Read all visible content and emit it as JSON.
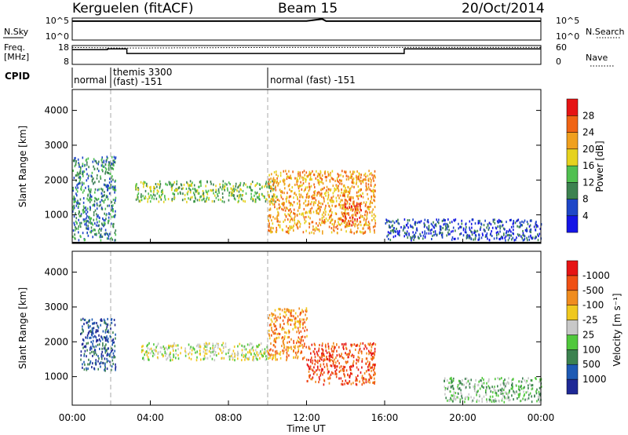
{
  "header": {
    "station": "Kerguelen (fitACF)",
    "beam": "Beam 15",
    "date": "20/Oct/2014"
  },
  "sky_panel": {
    "left_label": "N.Sky",
    "right_label": "N.Search",
    "left_ticks": [
      "10^5",
      "10^0"
    ],
    "right_ticks": [
      "10^5",
      "10^0"
    ]
  },
  "freq_panel": {
    "left_label_line1": "Freq.",
    "left_label_line2": "[MHz]",
    "right_label": "Nave",
    "left_ticks": [
      "18",
      "8"
    ],
    "right_ticks": [
      "60",
      "0"
    ]
  },
  "cpid": {
    "label": "CPID",
    "segments": [
      {
        "line1": "normal",
        "line2": ""
      },
      {
        "line1": "themis 3300",
        "line2": "(fast) -151"
      },
      {
        "line1": "normal (fast) -151",
        "line2": ""
      }
    ]
  },
  "time_axis": {
    "label": "Time UT",
    "ticks": [
      "00:00",
      "04:00",
      "08:00",
      "12:00",
      "16:00",
      "20:00",
      "00:00"
    ]
  },
  "colors": {
    "power": [
      "#1414e6",
      "#1e46c8",
      "#3c8250",
      "#50c050",
      "#e6d21e",
      "#f0a01e",
      "#f06414",
      "#e61414"
    ],
    "velocity": [
      "#e61414",
      "#f05014",
      "#f08c1e",
      "#f0c81e",
      "#c8c8c8",
      "#50c83c",
      "#3c8250",
      "#1e5ab4",
      "#1e2896"
    ],
    "frame": "#000000"
  },
  "chart_data": [
    {
      "type": "line",
      "title": "",
      "ylabel": "N.Sky",
      "y_scale": "log",
      "ylim": [
        1,
        100000
      ],
      "x_unit": "hours UT",
      "xlim": [
        0,
        24
      ],
      "series": [
        {
          "name": "N.Sky",
          "points": [
            [
              0,
              20000
            ],
            [
              6,
              20000
            ],
            [
              12,
              22000
            ],
            [
              12.8,
              60000
            ],
            [
              13,
              20000
            ],
            [
              18,
              20000
            ],
            [
              24,
              20000
            ]
          ]
        }
      ]
    },
    {
      "type": "line",
      "ylabel": "Freq. [MHz]",
      "ylim": [
        8,
        18
      ],
      "y2label": "Nave",
      "y2lim": [
        0,
        60
      ],
      "xlim": [
        0,
        24
      ],
      "series": [
        {
          "name": "Freq.",
          "points": [
            [
              0,
              15.8
            ],
            [
              1.8,
              15.8
            ],
            [
              1.8,
              16.2
            ],
            [
              2.8,
              16.2
            ],
            [
              2.8,
              13.8
            ],
            [
              17,
              13.8
            ],
            [
              17,
              16.2
            ],
            [
              24,
              16.2
            ]
          ]
        },
        {
          "name": "Nave",
          "style": "dotted",
          "points": [
            [
              0,
              54
            ],
            [
              2.8,
              52
            ],
            [
              10,
              54
            ],
            [
              24,
              54
            ]
          ]
        }
      ]
    },
    {
      "type": "heatmap",
      "ylabel": "Slant Range [km]",
      "ylim": [
        180,
        4600
      ],
      "yticks": [
        1000,
        2000,
        3000,
        4000
      ],
      "xlim": [
        0,
        24
      ],
      "colorbar_label": "Power [dB]",
      "colorbar_ticks": [
        "4",
        "8",
        "12",
        "16",
        "20",
        "24",
        "28"
      ],
      "echo_regions": [
        {
          "x": [
            0,
            2.2
          ],
          "y": [
            300,
            2700
          ],
          "level": 2
        },
        {
          "x": [
            3.2,
            10.5
          ],
          "y": [
            1400,
            2000
          ],
          "level": 3
        },
        {
          "x": [
            10,
            15.5
          ],
          "y": [
            500,
            2300
          ],
          "level": 5
        },
        {
          "x": [
            13.8,
            14.8
          ],
          "y": [
            700,
            1600
          ],
          "level": 6
        },
        {
          "x": [
            16,
            24
          ],
          "y": [
            300,
            900
          ],
          "level": 1
        }
      ]
    },
    {
      "type": "heatmap",
      "ylabel": "Slant Range [km]",
      "ylim": [
        180,
        4600
      ],
      "yticks": [
        1000,
        2000,
        3000,
        4000
      ],
      "xlim": [
        0,
        24
      ],
      "colorbar_label": "Velocity [m s⁻¹]",
      "colorbar_ticks": [
        "1000",
        "500",
        "100",
        "25",
        "-25",
        "-100",
        "-500",
        "-1000"
      ],
      "echo_regions": [
        {
          "x": [
            0.4,
            2.2
          ],
          "y": [
            1200,
            2700
          ],
          "level": 1
        },
        {
          "x": [
            3.5,
            10
          ],
          "y": [
            1500,
            2000
          ],
          "level": 4
        },
        {
          "x": [
            10,
            12
          ],
          "y": [
            1500,
            3000
          ],
          "level": 6
        },
        {
          "x": [
            12,
            15.5
          ],
          "y": [
            800,
            2000
          ],
          "level": 7
        },
        {
          "x": [
            19,
            24
          ],
          "y": [
            300,
            1000
          ],
          "level": 3
        }
      ]
    }
  ]
}
